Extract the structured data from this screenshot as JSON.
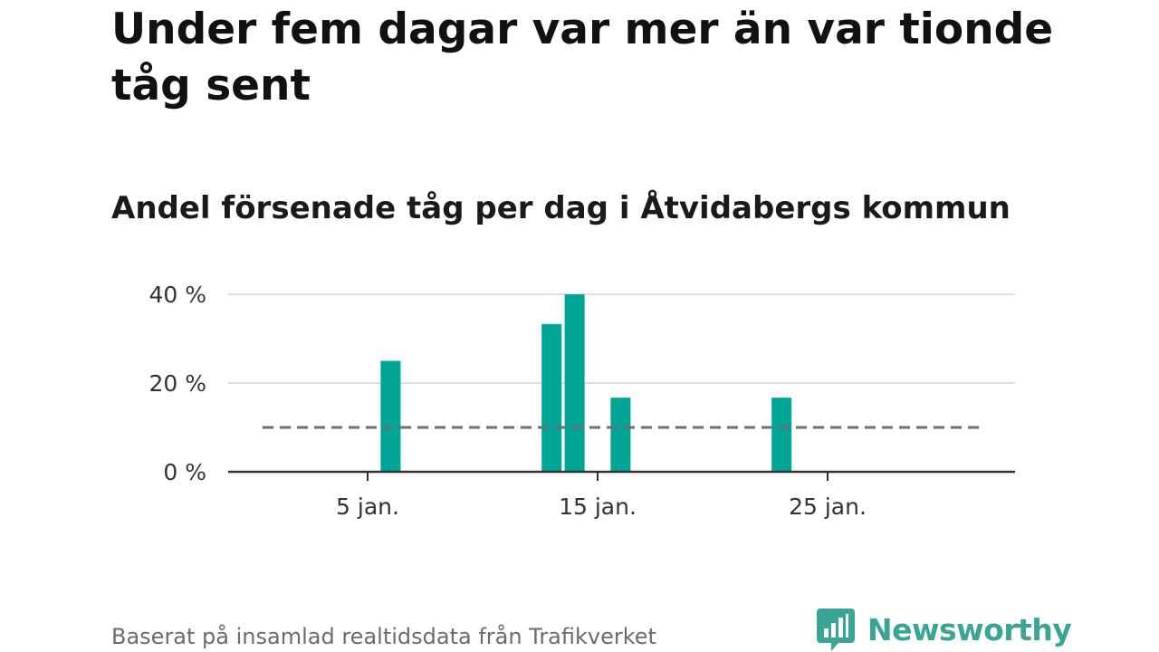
{
  "title": "Under fem dagar var mer än var tionde tåg sent",
  "subtitle": "Andel försenade tåg per dag i Åtvidabergs kommun",
  "footer": "Baserat på insamlad realtidsdata från Trafikverket",
  "brand": {
    "name": "Newsworthy",
    "color": "#3aa597",
    "icon": "bar-chart-speech-bubble-icon"
  },
  "colors": {
    "bar": "#00a595",
    "threshold": "#6e6e78",
    "grid": "#dddddd",
    "axis": "#333333"
  },
  "chart_data": {
    "type": "bar",
    "x": [
      "1 jan.",
      "2 jan.",
      "3 jan.",
      "4 jan.",
      "5 jan.",
      "6 jan.",
      "7 jan.",
      "8 jan.",
      "9 jan.",
      "10 jan.",
      "11 jan.",
      "12 jan.",
      "13 jan.",
      "14 jan.",
      "15 jan.",
      "16 jan.",
      "17 jan.",
      "18 jan.",
      "19 jan.",
      "20 jan.",
      "21 jan.",
      "22 jan.",
      "23 jan.",
      "24 jan.",
      "25 jan.",
      "26 jan.",
      "27 jan.",
      "28 jan.",
      "29 jan.",
      "30 jan.",
      "31 jan."
    ],
    "values": [
      0,
      0,
      0,
      0,
      0,
      25,
      0,
      0,
      0,
      0,
      0,
      0,
      33.3,
      40,
      0,
      16.7,
      0,
      0,
      0,
      0,
      0,
      0,
      16.7,
      0,
      0,
      0,
      0,
      0,
      0,
      0,
      0
    ],
    "xticks": [
      "5 jan.",
      "15 jan.",
      "25 jan."
    ],
    "yticks": [
      "0 %",
      "20 %",
      "40 %"
    ],
    "ylim": [
      0,
      40
    ],
    "threshold": {
      "value": 10,
      "style": "dashed"
    },
    "grid": true,
    "xlabel": "",
    "ylabel": ""
  }
}
